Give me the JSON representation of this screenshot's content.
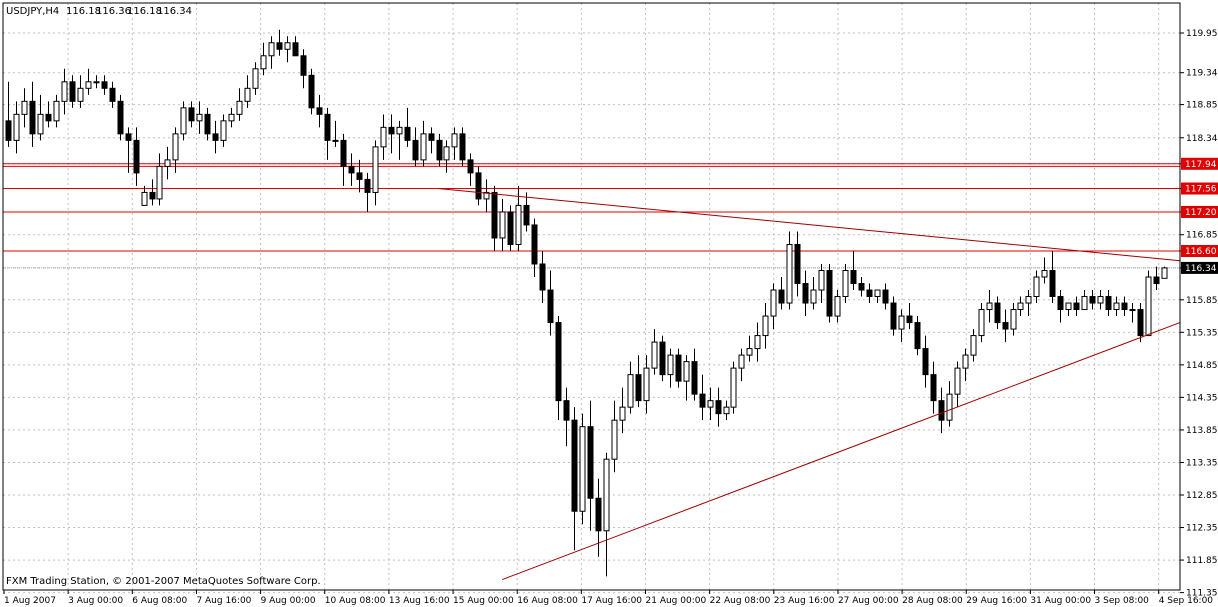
{
  "header": {
    "symbol": "USDJPY,H4",
    "open": "116.18",
    "high": "116.36",
    "low": "116.18",
    "close": "116.34"
  },
  "footer": {
    "copyright": "FXM Trading Station, © 2001-2007 MetaQuotes Software Corp."
  },
  "colors": {
    "background": "#ffffff",
    "grid": "#c0c0c0",
    "candle": "#000000",
    "hline": "#e00000",
    "trendline": "#a00000",
    "label_bg": "#e00000",
    "current_bg": "#000000",
    "label_text": "#ffffff"
  },
  "chart_data": {
    "type": "candlestick",
    "ylim": [
      11.35,
      120.15
    ],
    "yticks": [
      "119.95",
      "119.34",
      "118.85",
      "118.34",
      "117.94",
      "117.56",
      "117.20",
      "116.85",
      "116.60",
      "116.34",
      "115.85",
      "115.35",
      "114.85",
      "114.35",
      "113.85",
      "113.35",
      "112.85",
      "112.35",
      "111.85",
      "111.35"
    ],
    "xticks": [
      "1 Aug 2007",
      "3 Aug 00:00",
      "6 Aug 08:00",
      "7 Aug 16:00",
      "9 Aug 00:00",
      "10 Aug 08:00",
      "13 Aug 16:00",
      "15 Aug 00:00",
      "16 Aug 08:00",
      "17 Aug 16:00",
      "21 Aug 00:00",
      "22 Aug 08:00",
      "23 Aug 16:00",
      "27 Aug 00:00",
      "28 Aug 08:00",
      "29 Aug 16:00",
      "31 Aug 00:00",
      "3 Sep 08:00",
      "4 Sep 16:00"
    ],
    "current_price": 116.34,
    "horizontal_levels": [
      117.94,
      117.9,
      117.56,
      117.2,
      116.6
    ],
    "level_labels": [
      "117.94",
      "117.56",
      "117.20",
      "116.60"
    ],
    "trendlines": [
      {
        "from": [
          "15 Aug 00:00",
          117.56
        ],
        "to": [
          "4 Sep 16:00",
          116.45
        ]
      },
      {
        "from": [
          "16 Aug 08:00",
          111.55
        ],
        "to": [
          "4 Sep 16:00",
          115.5
        ]
      }
    ],
    "ohlc": [
      [
        118.6,
        119.2,
        118.2,
        118.3
      ],
      [
        118.3,
        118.9,
        118.1,
        118.7
      ],
      [
        118.7,
        119.1,
        118.5,
        118.9
      ],
      [
        118.9,
        119.2,
        118.2,
        118.4
      ],
      [
        118.4,
        119.0,
        118.3,
        118.7
      ],
      [
        118.7,
        118.9,
        118.5,
        118.6
      ],
      [
        118.6,
        119.0,
        118.5,
        118.9
      ],
      [
        118.9,
        119.4,
        118.7,
        119.2
      ],
      [
        119.2,
        119.3,
        118.8,
        118.9
      ],
      [
        118.9,
        119.3,
        118.8,
        119.1
      ],
      [
        119.1,
        119.4,
        119.0,
        119.2
      ],
      [
        119.2,
        119.3,
        119.1,
        119.2
      ],
      [
        119.2,
        119.3,
        119.0,
        119.1
      ],
      [
        119.1,
        119.2,
        118.8,
        118.9
      ],
      [
        118.9,
        119.0,
        118.3,
        118.4
      ],
      [
        118.4,
        118.5,
        117.8,
        118.3
      ],
      [
        118.3,
        118.5,
        117.6,
        117.8
      ],
      [
        117.3,
        117.6,
        117.3,
        117.5
      ],
      [
        117.5,
        117.7,
        117.3,
        117.4
      ],
      [
        117.4,
        118.1,
        117.3,
        117.9
      ],
      [
        117.9,
        118.2,
        117.7,
        118.0
      ],
      [
        118.0,
        118.5,
        117.8,
        118.4
      ],
      [
        118.4,
        118.9,
        118.3,
        118.8
      ],
      [
        118.8,
        118.9,
        118.5,
        118.6
      ],
      [
        118.6,
        118.9,
        118.4,
        118.7
      ],
      [
        118.7,
        118.8,
        118.3,
        118.4
      ],
      [
        118.4,
        118.6,
        118.1,
        118.3
      ],
      [
        118.3,
        118.7,
        118.2,
        118.6
      ],
      [
        118.6,
        118.8,
        118.5,
        118.7
      ],
      [
        118.7,
        119.1,
        118.6,
        118.9
      ],
      [
        118.9,
        119.3,
        118.8,
        119.1
      ],
      [
        119.1,
        119.5,
        119.0,
        119.4
      ],
      [
        119.4,
        119.8,
        119.3,
        119.6
      ],
      [
        119.6,
        119.9,
        119.4,
        119.8
      ],
      [
        119.8,
        120.0,
        119.6,
        119.7
      ],
      [
        119.7,
        119.9,
        119.5,
        119.8
      ],
      [
        119.8,
        119.9,
        119.6,
        119.6
      ],
      [
        119.6,
        119.7,
        119.1,
        119.3
      ],
      [
        119.3,
        119.4,
        118.7,
        118.8
      ],
      [
        118.8,
        119.0,
        118.5,
        118.7
      ],
      [
        118.7,
        118.8,
        118.0,
        118.3
      ],
      [
        118.3,
        118.6,
        118.2,
        118.3
      ],
      [
        118.3,
        118.4,
        117.6,
        117.9
      ],
      [
        117.9,
        118.1,
        117.6,
        117.8
      ],
      [
        117.8,
        118.0,
        117.5,
        117.7
      ],
      [
        117.7,
        117.8,
        117.2,
        117.5
      ],
      [
        117.5,
        118.3,
        117.3,
        118.2
      ],
      [
        118.2,
        118.7,
        118.0,
        118.5
      ],
      [
        118.5,
        118.7,
        118.1,
        118.4
      ],
      [
        118.4,
        118.6,
        118.0,
        118.5
      ],
      [
        118.5,
        118.8,
        118.2,
        118.3
      ],
      [
        118.3,
        118.5,
        117.9,
        118.0
      ],
      [
        118.0,
        118.6,
        117.9,
        118.4
      ],
      [
        118.4,
        118.5,
        118.1,
        118.3
      ],
      [
        118.3,
        118.4,
        117.9,
        118.0
      ],
      [
        118.0,
        118.3,
        117.8,
        118.2
      ],
      [
        118.2,
        118.5,
        118.0,
        118.4
      ],
      [
        118.4,
        118.5,
        117.9,
        118.0
      ],
      [
        118.0,
        118.1,
        117.6,
        117.8
      ],
      [
        117.8,
        117.9,
        117.3,
        117.4
      ],
      [
        117.4,
        117.7,
        117.2,
        117.5
      ],
      [
        117.5,
        117.6,
        116.6,
        116.8
      ],
      [
        116.8,
        117.4,
        116.6,
        117.2
      ],
      [
        117.2,
        117.3,
        116.6,
        116.7
      ],
      [
        116.7,
        117.6,
        116.6,
        117.3
      ],
      [
        117.3,
        117.5,
        116.9,
        117.0
      ],
      [
        117.0,
        117.1,
        116.2,
        116.4
      ],
      [
        116.4,
        116.6,
        115.8,
        116.0
      ],
      [
        116.0,
        116.3,
        115.3,
        115.5
      ],
      [
        115.5,
        115.6,
        114.0,
        114.3
      ],
      [
        114.3,
        114.5,
        113.6,
        114.0
      ],
      [
        114.0,
        114.2,
        112.0,
        112.6
      ],
      [
        112.6,
        114.1,
        112.4,
        113.9
      ],
      [
        113.9,
        114.3,
        112.3,
        112.8
      ],
      [
        112.8,
        113.1,
        111.9,
        112.3
      ],
      [
        112.3,
        113.5,
        111.6,
        113.4
      ],
      [
        113.4,
        114.3,
        113.2,
        114.0
      ],
      [
        114.0,
        114.5,
        113.8,
        114.2
      ],
      [
        114.2,
        114.9,
        114.1,
        114.7
      ],
      [
        114.7,
        115.0,
        114.2,
        114.3
      ],
      [
        114.3,
        115.0,
        114.1,
        114.8
      ],
      [
        114.8,
        115.4,
        114.7,
        115.2
      ],
      [
        115.2,
        115.3,
        114.6,
        114.7
      ],
      [
        114.7,
        115.1,
        114.5,
        115.0
      ],
      [
        115.0,
        115.1,
        114.5,
        114.6
      ],
      [
        114.6,
        115.0,
        114.3,
        114.9
      ],
      [
        114.9,
        115.1,
        114.3,
        114.4
      ],
      [
        114.4,
        114.7,
        114.0,
        114.2
      ],
      [
        114.2,
        114.5,
        114.0,
        114.3
      ],
      [
        114.3,
        114.5,
        113.9,
        114.1
      ],
      [
        114.1,
        114.3,
        114.0,
        114.2
      ],
      [
        114.2,
        114.9,
        114.1,
        114.8
      ],
      [
        114.8,
        115.1,
        114.6,
        115.0
      ],
      [
        115.0,
        115.3,
        114.9,
        115.1
      ],
      [
        115.1,
        115.5,
        114.9,
        115.3
      ],
      [
        115.3,
        115.8,
        115.1,
        115.6
      ],
      [
        115.6,
        116.1,
        115.4,
        116.0
      ],
      [
        116.0,
        116.2,
        115.7,
        115.8
      ],
      [
        115.8,
        116.9,
        115.7,
        116.7
      ],
      [
        116.7,
        116.9,
        115.9,
        116.1
      ],
      [
        116.1,
        116.3,
        115.6,
        115.8
      ],
      [
        115.8,
        116.2,
        115.7,
        116.0
      ],
      [
        116.0,
        116.4,
        115.8,
        116.3
      ],
      [
        116.3,
        116.4,
        115.5,
        115.6
      ],
      [
        115.6,
        116.0,
        115.5,
        115.9
      ],
      [
        115.9,
        116.4,
        115.8,
        116.3
      ],
      [
        116.3,
        116.6,
        116.0,
        116.1
      ],
      [
        116.1,
        116.2,
        115.9,
        116.0
      ],
      [
        116.0,
        116.1,
        115.8,
        115.9
      ],
      [
        115.9,
        116.0,
        115.8,
        116.0
      ],
      [
        116.0,
        116.1,
        115.7,
        115.8
      ],
      [
        115.8,
        115.9,
        115.3,
        115.4
      ],
      [
        115.4,
        115.7,
        115.2,
        115.6
      ],
      [
        115.6,
        115.8,
        115.4,
        115.5
      ],
      [
        115.5,
        115.6,
        115.0,
        115.1
      ],
      [
        115.1,
        115.3,
        114.5,
        114.7
      ],
      [
        114.7,
        114.9,
        114.1,
        114.3
      ],
      [
        114.3,
        114.5,
        113.8,
        114.0
      ],
      [
        114.0,
        114.6,
        113.9,
        114.4
      ],
      [
        114.4,
        114.9,
        114.2,
        114.8
      ],
      [
        114.8,
        115.1,
        114.6,
        115.0
      ],
      [
        115.0,
        115.4,
        114.9,
        115.3
      ],
      [
        115.3,
        115.8,
        115.2,
        115.7
      ],
      [
        115.7,
        116.0,
        115.5,
        115.8
      ],
      [
        115.8,
        115.9,
        115.4,
        115.5
      ],
      [
        115.5,
        115.7,
        115.2,
        115.4
      ],
      [
        115.4,
        115.8,
        115.3,
        115.7
      ],
      [
        115.7,
        115.9,
        115.6,
        115.8
      ],
      [
        115.8,
        116.0,
        115.6,
        115.9
      ],
      [
        115.9,
        116.3,
        115.8,
        116.2
      ],
      [
        116.2,
        116.5,
        116.1,
        116.3
      ],
      [
        116.3,
        116.6,
        115.8,
        115.9
      ],
      [
        115.9,
        116.0,
        115.5,
        115.7
      ],
      [
        115.7,
        115.8,
        115.6,
        115.8
      ],
      [
        115.8,
        115.9,
        115.6,
        115.7
      ],
      [
        115.7,
        116.0,
        115.7,
        115.9
      ],
      [
        115.9,
        116.0,
        115.7,
        115.8
      ],
      [
        115.8,
        116.0,
        115.7,
        115.9
      ],
      [
        115.9,
        116.0,
        115.6,
        115.7
      ],
      [
        115.7,
        115.9,
        115.6,
        115.8
      ],
      [
        115.8,
        115.9,
        115.6,
        115.7
      ],
      [
        115.7,
        115.8,
        115.5,
        115.7
      ],
      [
        115.7,
        115.8,
        115.2,
        115.3
      ],
      [
        115.3,
        116.3,
        115.3,
        116.2
      ],
      [
        116.2,
        116.36,
        116.0,
        116.1
      ],
      [
        116.18,
        116.36,
        116.18,
        116.34
      ]
    ]
  }
}
